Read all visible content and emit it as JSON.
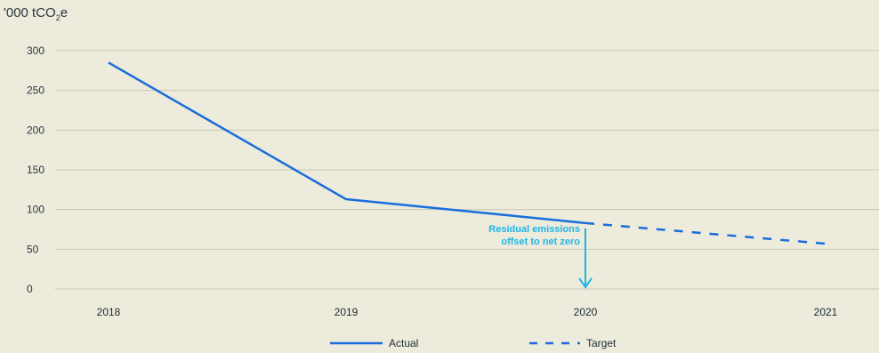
{
  "chart_data": {
    "type": "line",
    "ylabel_prefix": "'000 tCO",
    "ylabel_sub": "2",
    "ylabel_suffix": "e",
    "ylim": [
      0,
      300
    ],
    "yticks": [
      0,
      50,
      100,
      150,
      200,
      250,
      300
    ],
    "categories": [
      "2018",
      "2019",
      "2020",
      "2021"
    ],
    "series": [
      {
        "name": "Actual",
        "style": "solid",
        "color": "#1a6ddb",
        "x": [
          "2018",
          "2019",
          "2020"
        ],
        "values": [
          285,
          113,
          83
        ]
      },
      {
        "name": "Target",
        "style": "dashed",
        "color": "#1a6ddb",
        "x": [
          "2020",
          "2021"
        ],
        "values": [
          83,
          57
        ]
      }
    ],
    "annotation": {
      "lines": [
        "Residual emissions",
        "offset to net zero"
      ],
      "at_category": "2020",
      "color": "#1fb6e6"
    },
    "grid": true,
    "legend": "bottom-center"
  }
}
